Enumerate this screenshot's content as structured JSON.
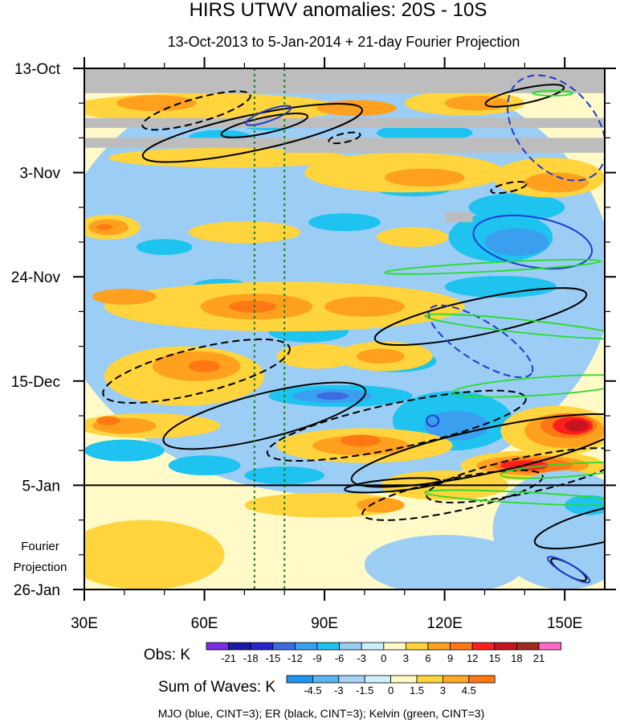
{
  "chart_data": {
    "type": "heatmap",
    "title": "HIRS UTWV anomalies: 20S - 10S",
    "subtitle": "13-Oct-2013 to 5-Jan-2014 + 21-day Fourier Projection",
    "x_axis": {
      "range": [
        30,
        160
      ],
      "ticks": [
        30,
        60,
        90,
        120,
        150
      ],
      "tick_labels": [
        "30E",
        "60E",
        "90E",
        "120E",
        "150E"
      ]
    },
    "y_axis": {
      "range_days": [
        0,
        105
      ],
      "ticks_days": [
        0,
        21,
        42,
        63,
        84,
        105
      ],
      "tick_labels": [
        "13-Oct",
        "3-Nov",
        "24-Nov",
        "15-Dec",
        "5-Jan",
        "26-Jan"
      ],
      "direction": "downward"
    },
    "projection_label": [
      "Fourier",
      "Projection"
    ],
    "observed_end_day": 84,
    "reference_lines_lon": [
      72.5,
      80
    ],
    "missing_data_rows": [
      {
        "day_start": 0,
        "day_end": 5,
        "lon_start": 30,
        "lon_end": 160
      },
      {
        "day_start": 10,
        "day_end": 12,
        "lon_start": 30,
        "lon_end": 160
      },
      {
        "day_start": 14,
        "day_end": 16,
        "lon_start": 30,
        "lon_end": 160
      },
      {
        "day_start": 16,
        "day_end": 17,
        "lon_start": 80,
        "lon_end": 160
      },
      {
        "day_start": 29,
        "day_end": 31,
        "lon_start": 120,
        "lon_end": 127
      }
    ],
    "obs_legend": {
      "label": "Obs: K",
      "levels": [
        "-21",
        "-18",
        "-15",
        "-12",
        "-9",
        "-6",
        "-3",
        "0",
        "3",
        "6",
        "9",
        "12",
        "15",
        "18",
        "21"
      ],
      "colors": [
        "#7b2be0",
        "#1a1aa6",
        "#2626cc",
        "#3b6be0",
        "#3b9ff0",
        "#1ec3f0",
        "#9ccdf5",
        "#c9eefc",
        "#fffac8",
        "#ffd43c",
        "#ffa01e",
        "#ff7814",
        "#ff1e1e",
        "#c8141e",
        "#a0281e",
        "#ff69c8"
      ]
    },
    "waves_legend": {
      "label": "Sum of Waves: K",
      "levels": [
        "-4.5",
        "-3",
        "-1.5",
        "0",
        "1.5",
        "3",
        "4.5"
      ],
      "colors": [
        "#1e96f0",
        "#5ab4f0",
        "#a5d2f5",
        "#d2f0fa",
        "#fffac8",
        "#ffd43c",
        "#ffaa28",
        "#ff7814"
      ]
    },
    "footnote": "MJO (blue, CINT=3); ER (black, CINT=3); Kelvin (green, CINT=3)",
    "wave_contours": [
      {
        "wave": "ER",
        "color": "#000000",
        "dash": false,
        "cx": 72,
        "cy": 13,
        "rx": 28,
        "ry": 3.6,
        "rot": -12
      },
      {
        "wave": "ER",
        "color": "#000000",
        "dash": true,
        "cx": 58,
        "cy": 8.5,
        "rx": 14,
        "ry": 2.4,
        "rot": -16
      },
      {
        "wave": "ER",
        "color": "#000000",
        "dash": false,
        "cx": 75,
        "cy": 11.5,
        "rx": 11,
        "ry": 1.6,
        "rot": -12
      },
      {
        "wave": "ER",
        "color": "#000000",
        "dash": true,
        "cx": 95,
        "cy": 14,
        "rx": 4,
        "ry": 0.9,
        "rot": -12
      },
      {
        "wave": "ER",
        "color": "#000000",
        "dash": false,
        "cx": 140,
        "cy": 5.5,
        "rx": 10,
        "ry": 1.5,
        "rot": -12
      },
      {
        "wave": "ER",
        "color": "#000000",
        "dash": true,
        "cx": 136,
        "cy": 24,
        "rx": 4.5,
        "ry": 0.9,
        "rot": -12
      },
      {
        "wave": "ER",
        "color": "#000000",
        "dash": true,
        "cx": 58,
        "cy": 61,
        "rx": 24,
        "ry": 4.5,
        "rot": -14
      },
      {
        "wave": "ER",
        "color": "#000000",
        "dash": false,
        "cx": 75,
        "cy": 70,
        "rx": 26,
        "ry": 4.5,
        "rot": -14
      },
      {
        "wave": "ER",
        "color": "#000000",
        "dash": true,
        "cx": 108,
        "cy": 72,
        "rx": 33,
        "ry": 4.5,
        "rot": -12
      },
      {
        "wave": "ER",
        "color": "#000000",
        "dash": false,
        "cx": 129,
        "cy": 50,
        "rx": 27,
        "ry": 3.6,
        "rot": -12
      },
      {
        "wave": "ER",
        "color": "#000000",
        "dash": false,
        "cx": 131,
        "cy": 77,
        "rx": 35,
        "ry": 4.5,
        "rot": -12
      },
      {
        "wave": "ER",
        "color": "#000000",
        "dash": true,
        "cx": 140,
        "cy": 82,
        "rx": 25,
        "ry": 3.6,
        "rot": -12
      },
      {
        "wave": "ER",
        "color": "#000000",
        "dash": false,
        "cx": 107,
        "cy": 84,
        "rx": 12,
        "ry": 1.2,
        "rot": -5
      },
      {
        "wave": "ER",
        "color": "#000000",
        "dash": true,
        "cx": 122,
        "cy": 86,
        "rx": 23,
        "ry": 3.3,
        "rot": -12
      },
      {
        "wave": "ER",
        "color": "#000000",
        "dash": false,
        "cx": 160,
        "cy": 92,
        "rx": 18,
        "ry": 3.3,
        "rot": -14
      },
      {
        "wave": "ER",
        "color": "#000000",
        "dash": false,
        "cx": 151,
        "cy": 101,
        "rx": 5,
        "ry": 1.1,
        "rot": 30
      },
      {
        "wave": "MJO",
        "color": "#1e3cd2",
        "dash": false,
        "cx": 76,
        "cy": 9.5,
        "rx": 6,
        "ry": 1.1,
        "rot": -20
      },
      {
        "wave": "MJO",
        "color": "#1e3cd2",
        "dash": true,
        "cx": 148,
        "cy": 12,
        "rx": 15,
        "ry": 8,
        "rot": 50
      },
      {
        "wave": "MJO",
        "color": "#1e3cd2",
        "dash": false,
        "cx": 142,
        "cy": 35,
        "rx": 15,
        "ry": 5,
        "rot": 10
      },
      {
        "wave": "MJO",
        "color": "#1e3cd2",
        "dash": true,
        "cx": 129,
        "cy": 55,
        "rx": 15,
        "ry": 4,
        "rot": 32
      },
      {
        "wave": "MJO",
        "color": "#1e3cd2",
        "dash": false,
        "cx": 117,
        "cy": 71,
        "rx": 1.5,
        "ry": 1.1,
        "rot": 0
      },
      {
        "wave": "MJO",
        "color": "#1e3cd2",
        "dash": false,
        "cx": 151,
        "cy": 101,
        "rx": 6,
        "ry": 1.1,
        "rot": 30
      },
      {
        "wave": "Kelvin",
        "color": "#28dc28",
        "dash": false,
        "cx": 132,
        "cy": 40,
        "rx": 27,
        "ry": 0.9,
        "rot": -3
      },
      {
        "wave": "Kelvin",
        "color": "#28dc28",
        "dash": false,
        "cx": 140,
        "cy": 52,
        "rx": 25,
        "ry": 1.3,
        "rot": 6
      },
      {
        "wave": "Kelvin",
        "color": "#28dc28",
        "dash": false,
        "cx": 145,
        "cy": 64,
        "rx": 23,
        "ry": 1.8,
        "rot": -4
      },
      {
        "wave": "Kelvin",
        "color": "#28dc28",
        "dash": false,
        "cx": 150,
        "cy": 81,
        "rx": 16,
        "ry": 1.3,
        "rot": -4
      },
      {
        "wave": "Kelvin",
        "color": "#28dc28",
        "dash": false,
        "cx": 140,
        "cy": 86.5,
        "rx": 25,
        "ry": 1.1,
        "rot": 3
      },
      {
        "wave": "Kelvin",
        "color": "#28dc28",
        "dash": false,
        "cx": 147,
        "cy": 5,
        "rx": 5,
        "ry": 0.5,
        "rot": 0
      }
    ],
    "anomaly_patches": [
      {
        "v": -3,
        "cx": 92,
        "cy": 42,
        "rx": 70,
        "ry": 44
      },
      {
        "v": -6,
        "cx": 50,
        "cy": 36,
        "rx": 7,
        "ry": 1.6
      },
      {
        "v": -6,
        "cx": 64,
        "cy": 44,
        "rx": 7,
        "ry": 1.6
      },
      {
        "v": -6,
        "cx": 95,
        "cy": 31,
        "rx": 9,
        "ry": 1.8
      },
      {
        "v": -6,
        "cx": 86,
        "cy": 53,
        "rx": 10,
        "ry": 2.2
      },
      {
        "v": -6,
        "cx": 108,
        "cy": 59,
        "rx": 10,
        "ry": 2.2
      },
      {
        "v": -6,
        "cx": 134,
        "cy": 34,
        "rx": 13,
        "ry": 5
      },
      {
        "v": -9,
        "cx": 138,
        "cy": 35,
        "rx": 8,
        "ry": 2.8
      },
      {
        "v": -6,
        "cx": 134,
        "cy": 44,
        "rx": 14,
        "ry": 2.2
      },
      {
        "v": -6,
        "cx": 138,
        "cy": 28,
        "rx": 12,
        "ry": 2.8
      },
      {
        "v": -6,
        "cx": 112,
        "cy": 24,
        "rx": 10,
        "ry": 1.8
      },
      {
        "v": -6,
        "cx": 76,
        "cy": 11,
        "rx": 8,
        "ry": 1.5
      },
      {
        "v": -9,
        "cx": 78,
        "cy": 10,
        "rx": 4,
        "ry": 0.8
      },
      {
        "v": -6,
        "cx": 122,
        "cy": 71,
        "rx": 15,
        "ry": 6
      },
      {
        "v": -9,
        "cx": 123,
        "cy": 72,
        "rx": 8,
        "ry": 3
      },
      {
        "v": -6,
        "cx": 40,
        "cy": 77,
        "rx": 10,
        "ry": 2.2
      },
      {
        "v": -6,
        "cx": 60,
        "cy": 80,
        "rx": 9,
        "ry": 2
      },
      {
        "v": -6,
        "cx": 80,
        "cy": 82,
        "rx": 10,
        "ry": 1.8
      },
      {
        "v": -6,
        "cx": 94,
        "cy": 66,
        "rx": 18,
        "ry": 2.2
      },
      {
        "v": -9,
        "cx": 92,
        "cy": 66,
        "rx": 10,
        "ry": 1.4
      },
      {
        "v": -12,
        "cx": 92,
        "cy": 66,
        "rx": 4,
        "ry": 0.8
      },
      {
        "v": -6,
        "cx": 64,
        "cy": 14,
        "rx": 8,
        "ry": 1.6
      },
      {
        "v": -6,
        "cx": 115,
        "cy": 13,
        "rx": 12,
        "ry": 1.8
      },
      {
        "v": 3,
        "cx": 60,
        "cy": 8,
        "rx": 34,
        "ry": 3
      },
      {
        "v": 6,
        "cx": 48,
        "cy": 7,
        "rx": 10,
        "ry": 1.6
      },
      {
        "v": 6,
        "cx": 98,
        "cy": 8,
        "rx": 10,
        "ry": 1.6
      },
      {
        "v": 3,
        "cx": 125,
        "cy": 7,
        "rx": 15,
        "ry": 2.5
      },
      {
        "v": 6,
        "cx": 128,
        "cy": 7,
        "rx": 8,
        "ry": 1.5
      },
      {
        "v": 3,
        "cx": 66,
        "cy": 18,
        "rx": 30,
        "ry": 2
      },
      {
        "v": 3,
        "cx": 110,
        "cy": 21,
        "rx": 25,
        "ry": 4
      },
      {
        "v": 6,
        "cx": 115,
        "cy": 22,
        "rx": 10,
        "ry": 1.8
      },
      {
        "v": 3,
        "cx": 146,
        "cy": 22,
        "rx": 14,
        "ry": 4
      },
      {
        "v": 6,
        "cx": 148,
        "cy": 23,
        "rx": 8,
        "ry": 2
      },
      {
        "v": 3,
        "cx": 36,
        "cy": 32,
        "rx": 8,
        "ry": 2.5
      },
      {
        "v": 6,
        "cx": 36,
        "cy": 32,
        "rx": 5,
        "ry": 1.6
      },
      {
        "v": 9,
        "cx": 35,
        "cy": 32,
        "rx": 2,
        "ry": 0.6
      },
      {
        "v": 3,
        "cx": 70,
        "cy": 33,
        "rx": 14,
        "ry": 2.2
      },
      {
        "v": 3,
        "cx": 112,
        "cy": 34,
        "rx": 9,
        "ry": 2
      },
      {
        "v": 3,
        "cx": 80,
        "cy": 48,
        "rx": 45,
        "ry": 5
      },
      {
        "v": 6,
        "cx": 73,
        "cy": 48,
        "rx": 14,
        "ry": 2.6
      },
      {
        "v": 9,
        "cx": 72,
        "cy": 48,
        "rx": 6,
        "ry": 1.2
      },
      {
        "v": 6,
        "cx": 100,
        "cy": 48,
        "rx": 10,
        "ry": 2
      },
      {
        "v": 6,
        "cx": 40,
        "cy": 46,
        "rx": 8,
        "ry": 1.6
      },
      {
        "v": 3,
        "cx": 55,
        "cy": 62,
        "rx": 20,
        "ry": 6
      },
      {
        "v": 6,
        "cx": 58,
        "cy": 60,
        "rx": 11,
        "ry": 3
      },
      {
        "v": 9,
        "cx": 60,
        "cy": 60,
        "rx": 4,
        "ry": 1.2
      },
      {
        "v": 3,
        "cx": 105,
        "cy": 58,
        "rx": 12,
        "ry": 3
      },
      {
        "v": 6,
        "cx": 104,
        "cy": 58,
        "rx": 6,
        "ry": 1.5
      },
      {
        "v": 3,
        "cx": 46,
        "cy": 72,
        "rx": 18,
        "ry": 2.5
      },
      {
        "v": 6,
        "cx": 40,
        "cy": 72,
        "rx": 8,
        "ry": 1.6
      },
      {
        "v": 9,
        "cx": 36,
        "cy": 71,
        "rx": 3,
        "ry": 0.9
      },
      {
        "v": 3,
        "cx": 100,
        "cy": 76,
        "rx": 22,
        "ry": 3.5
      },
      {
        "v": 6,
        "cx": 99,
        "cy": 76,
        "rx": 12,
        "ry": 2
      },
      {
        "v": 9,
        "cx": 99,
        "cy": 75,
        "rx": 5,
        "ry": 1.2
      },
      {
        "v": 3,
        "cx": 148,
        "cy": 73,
        "rx": 14,
        "ry": 5
      },
      {
        "v": 6,
        "cx": 150,
        "cy": 73,
        "rx": 10,
        "ry": 3.5
      },
      {
        "v": 9,
        "cx": 151,
        "cy": 72,
        "rx": 7,
        "ry": 2.5
      },
      {
        "v": 12,
        "cx": 152,
        "cy": 72,
        "rx": 5,
        "ry": 1.8
      },
      {
        "v": 15,
        "cx": 153,
        "cy": 72,
        "rx": 3,
        "ry": 1.2
      },
      {
        "v": 3,
        "cx": 142,
        "cy": 80,
        "rx": 18,
        "ry": 3
      },
      {
        "v": 6,
        "cx": 142,
        "cy": 80,
        "rx": 14,
        "ry": 2
      },
      {
        "v": 9,
        "cx": 142,
        "cy": 80,
        "rx": 10,
        "ry": 1.5
      },
      {
        "v": 12,
        "cx": 140,
        "cy": 80,
        "rx": 6,
        "ry": 1
      },
      {
        "v": 3,
        "cx": 88,
        "cy": 58,
        "rx": 10,
        "ry": 2.5
      },
      {
        "v": 3,
        "cx": 120,
        "cy": 84,
        "rx": 16,
        "ry": 3
      },
      {
        "v": 3,
        "cx": 45,
        "cy": 98,
        "rx": 20,
        "ry": 7
      },
      {
        "v": 3,
        "cx": 90,
        "cy": 88,
        "rx": 20,
        "ry": 2.5
      },
      {
        "v": 6,
        "cx": 104,
        "cy": 88,
        "rx": 6,
        "ry": 1.5
      },
      {
        "v": -3,
        "cx": 150,
        "cy": 93,
        "rx": 18,
        "ry": 12
      },
      {
        "v": -6,
        "cx": 156,
        "cy": 88,
        "rx": 6,
        "ry": 2
      },
      {
        "v": -3,
        "cx": 120,
        "cy": 100,
        "rx": 20,
        "ry": 6
      }
    ]
  }
}
